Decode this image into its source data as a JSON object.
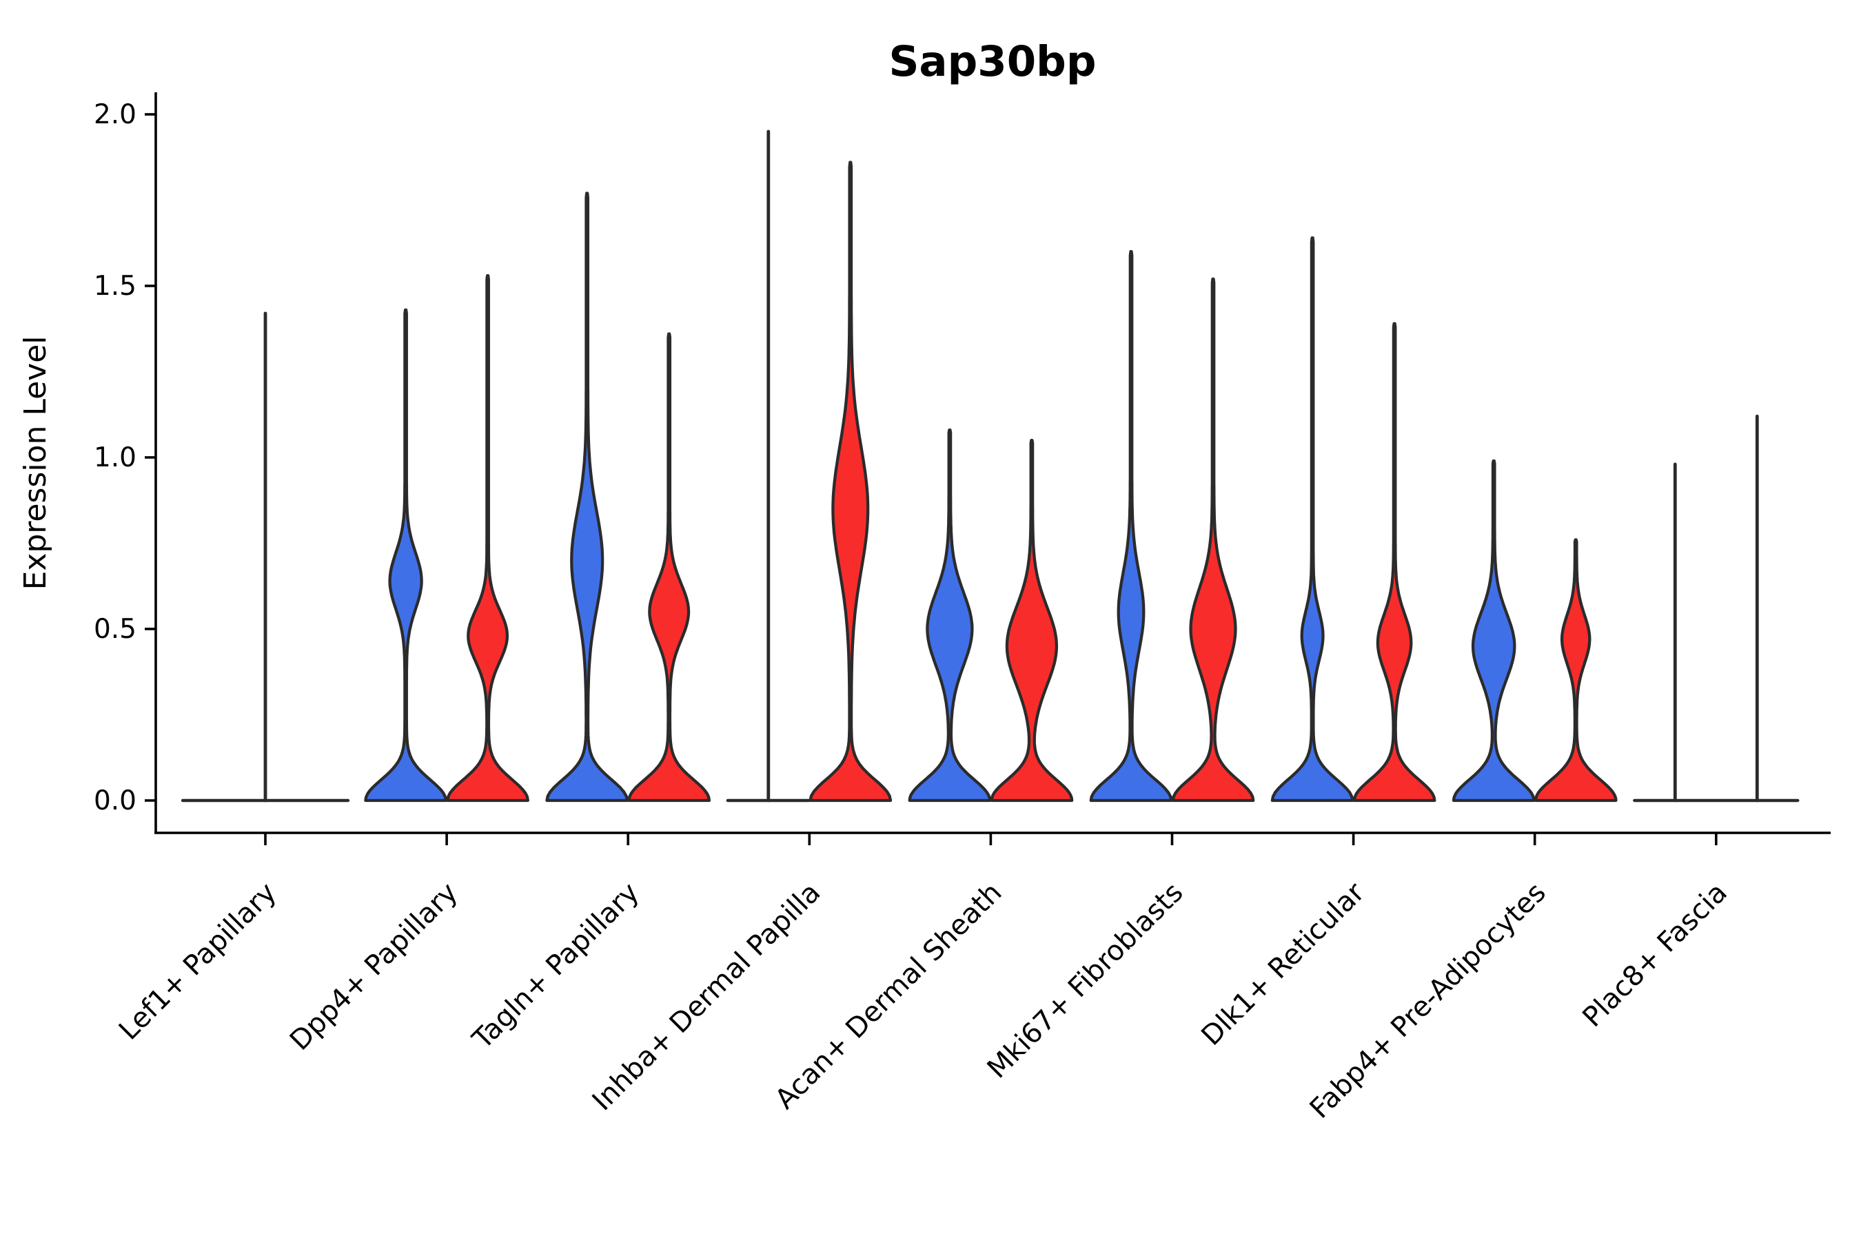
{
  "chart_data": {
    "type": "violin",
    "title": "Sap30bp",
    "ylabel": "Expression Level",
    "xlabel": "",
    "grid": false,
    "legend_position": "none",
    "ylim": [
      -0.095,
      2.07
    ],
    "ytick_labels": [
      "0.0",
      "0.5",
      "1.0",
      "1.5",
      "2.0"
    ],
    "ytick_values": [
      0.0,
      0.5,
      1.0,
      1.5,
      2.0
    ],
    "categories": [
      "Lef1+ Papillary",
      "Dpp4+ Papillary",
      "Tagln+ Papillary",
      "Inhba+ Dermal Papilla",
      "Acan+ Dermal Sheath",
      "Mki67+ Fibroblasts",
      "Dlk1+ Reticular",
      "Fabp4+ Pre-Adipocytes",
      "Plac8+ Fascia"
    ],
    "groups": [
      "blue",
      "red"
    ],
    "colors": {
      "blue": "#4070E8",
      "red": "#F92C2C",
      "outline": "#2b2b2b",
      "axis": "#000000",
      "background": "#ffffff"
    },
    "violins": [
      {
        "category": "Lef1+ Papillary",
        "group": "all",
        "shape": "collapsed-line",
        "max_expression": 1.42,
        "full_width": true
      },
      {
        "category": "Dpp4+ Papillary",
        "group": "blue",
        "shape": "violin",
        "max_expression": 1.43,
        "bulge_center": 0.64,
        "bulge_spread": 0.115,
        "bulge_halfwidth_frac": 0.37
      },
      {
        "category": "Dpp4+ Papillary",
        "group": "red",
        "shape": "violin",
        "max_expression": 1.53,
        "bulge_center": 0.48,
        "bulge_spread": 0.105,
        "bulge_halfwidth_frac": 0.46
      },
      {
        "category": "Tagln+ Papillary",
        "group": "blue",
        "shape": "violin",
        "max_expression": 1.77,
        "bulge_center": 0.7,
        "bulge_spread": 0.2,
        "bulge_halfwidth_frac": 0.36
      },
      {
        "category": "Tagln+ Papillary",
        "group": "red",
        "shape": "violin",
        "max_expression": 1.36,
        "bulge_center": 0.55,
        "bulge_spread": 0.115,
        "bulge_halfwidth_frac": 0.46
      },
      {
        "category": "Inhba+ Dermal Papilla",
        "group": "blue",
        "shape": "collapsed-line",
        "max_expression": 1.95
      },
      {
        "category": "Inhba+ Dermal Papilla",
        "group": "red",
        "shape": "violin",
        "max_expression": 1.86,
        "bulge_center": 0.85,
        "bulge_spread": 0.25,
        "bulge_halfwidth_frac": 0.41
      },
      {
        "category": "Acan+ Dermal Sheath",
        "group": "blue",
        "shape": "violin",
        "max_expression": 1.08,
        "bulge_center": 0.5,
        "bulge_spread": 0.15,
        "bulge_halfwidth_frac": 0.53
      },
      {
        "category": "Acan+ Dermal Sheath",
        "group": "red",
        "shape": "violin",
        "max_expression": 1.05,
        "bulge_center": 0.45,
        "bulge_spread": 0.16,
        "bulge_halfwidth_frac": 0.59
      },
      {
        "category": "Mki67+ Fibroblasts",
        "group": "blue",
        "shape": "violin",
        "max_expression": 1.6,
        "bulge_center": 0.55,
        "bulge_spread": 0.16,
        "bulge_halfwidth_frac": 0.29
      },
      {
        "category": "Mki67+ Fibroblasts",
        "group": "red",
        "shape": "violin",
        "max_expression": 1.52,
        "bulge_center": 0.5,
        "bulge_spread": 0.165,
        "bulge_halfwidth_frac": 0.53
      },
      {
        "category": "Dlk1+ Reticular",
        "group": "blue",
        "shape": "violin",
        "max_expression": 1.64,
        "bulge_center": 0.48,
        "bulge_spread": 0.1,
        "bulge_halfwidth_frac": 0.24
      },
      {
        "category": "Dlk1+ Reticular",
        "group": "red",
        "shape": "violin",
        "max_expression": 1.39,
        "bulge_center": 0.46,
        "bulge_spread": 0.115,
        "bulge_halfwidth_frac": 0.39
      },
      {
        "category": "Fabp4+ Pre-Adipocytes",
        "group": "blue",
        "shape": "violin",
        "max_expression": 0.99,
        "bulge_center": 0.45,
        "bulge_spread": 0.135,
        "bulge_halfwidth_frac": 0.49
      },
      {
        "category": "Fabp4+ Pre-Adipocytes",
        "group": "red",
        "shape": "violin",
        "max_expression": 0.76,
        "bulge_center": 0.47,
        "bulge_spread": 0.1,
        "bulge_halfwidth_frac": 0.32
      },
      {
        "category": "Plac8+ Fascia",
        "group": "blue",
        "shape": "collapsed-line",
        "max_expression": 0.98
      },
      {
        "category": "Plac8+ Fascia",
        "group": "red",
        "shape": "collapsed-line",
        "max_expression": 1.12
      }
    ]
  }
}
